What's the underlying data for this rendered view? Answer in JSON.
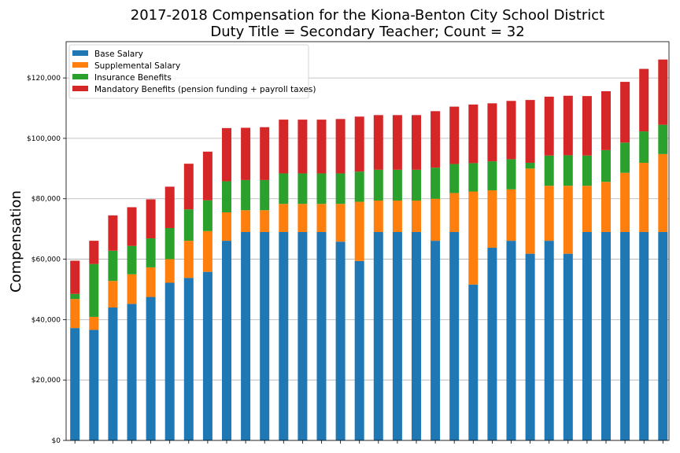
{
  "chart_data": {
    "type": "bar",
    "stacked": true,
    "title_line1": "2017-2018 Compensation for the Kiona-Benton City School District",
    "title_line2": "Duty Title = Secondary Teacher; Count = 32",
    "xlabel": "",
    "ylabel": "Compensation",
    "ylim": [
      0,
      132000
    ],
    "yticks": [
      0,
      20000,
      40000,
      60000,
      80000,
      100000,
      120000
    ],
    "ytick_labels": [
      "$0",
      "$20,000",
      "$40,000",
      "$60,000",
      "$80,000",
      "$100,000",
      "$120,000"
    ],
    "grid": "horizontal",
    "legend_position": "top-left",
    "series": [
      {
        "name": "Base Salary",
        "color": "#1f77b4",
        "values": [
          37200,
          36600,
          44000,
          45200,
          47500,
          52200,
          53800,
          55800,
          66100,
          69000,
          69000,
          69000,
          69000,
          69000,
          65800,
          59400,
          69000,
          69000,
          69000,
          66100,
          69000,
          51600,
          63800,
          66100,
          61800,
          66100,
          61800,
          69000,
          69000,
          69000,
          69000,
          69000
        ]
      },
      {
        "name": "Supplemental Salary",
        "color": "#ff7f0e",
        "values": [
          9600,
          4300,
          8800,
          9800,
          9800,
          7800,
          12300,
          13500,
          9400,
          7200,
          7200,
          9300,
          9300,
          9300,
          12500,
          19600,
          10400,
          10400,
          10400,
          13900,
          12900,
          30800,
          19000,
          17000,
          28200,
          18200,
          22500,
          15300,
          16600,
          19600,
          22900,
          25800
        ]
      },
      {
        "name": "Insurance Benefits",
        "color": "#2ca02c",
        "values": [
          1700,
          17500,
          10000,
          9400,
          9600,
          10300,
          10400,
          10200,
          10300,
          10000,
          10000,
          10100,
          10100,
          10100,
          10100,
          10000,
          10200,
          10200,
          10200,
          10300,
          9600,
          9400,
          9600,
          10000,
          1900,
          10000,
          10100,
          10000,
          10500,
          10000,
          10400,
          9700
        ]
      },
      {
        "name": "Mandatory Benefits (pension funding + payroll taxes)",
        "color": "#d62728",
        "values": [
          11000,
          7700,
          11700,
          12800,
          12900,
          13700,
          15100,
          16100,
          17600,
          17300,
          17500,
          17800,
          17800,
          17800,
          18000,
          18200,
          18100,
          18100,
          18100,
          18700,
          19000,
          19400,
          19200,
          19300,
          20800,
          19500,
          19700,
          19700,
          19500,
          20100,
          20700,
          21600
        ]
      }
    ]
  }
}
